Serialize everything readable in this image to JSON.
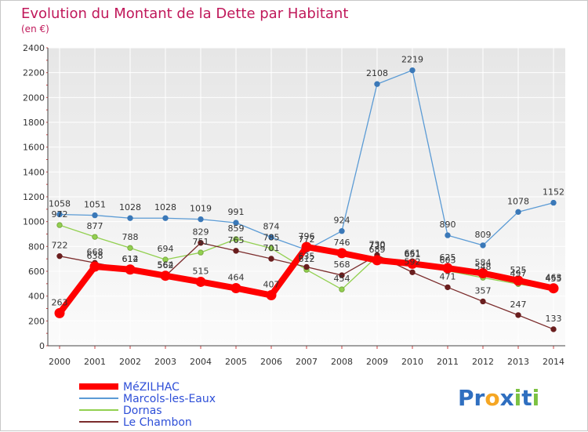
{
  "chart_data": {
    "type": "line",
    "title": "Evolution du Montant de la Dette par Habitant",
    "subtitle": "(en €)",
    "xlabel": "",
    "ylabel": "",
    "x": [
      "2000",
      "2001",
      "2002",
      "2003",
      "2004",
      "2005",
      "2006",
      "2007",
      "2008",
      "2009",
      "2010",
      "2011",
      "2012",
      "2013",
      "2014"
    ],
    "ylim": [
      0,
      2400
    ],
    "yticks": [
      0,
      200,
      400,
      600,
      800,
      1000,
      1200,
      1400,
      1600,
      1800,
      2000,
      2200,
      2400
    ],
    "grid": true,
    "legend_position": "bottom-left",
    "series": [
      {
        "name": "MéZILHAC",
        "color": "#ff0000",
        "values": [
          263,
          638,
          614,
          564,
          515,
          464,
          407,
          796,
          746,
          689,
          661,
          625,
          584,
          525,
          463
        ]
      },
      {
        "name": "Marcols-les-Eaux",
        "color": "#5b9bd5",
        "values": [
          1058,
          1051,
          1028,
          1028,
          1019,
          991,
          874,
          772,
          924,
          2108,
          2219,
          890,
          809,
          1078,
          1152
        ]
      },
      {
        "name": "Dornas",
        "color": "#92d050",
        "values": [
          972,
          877,
          788,
          694,
          751,
          859,
          785,
          612,
          454,
          720,
          651,
          603,
          548,
          497,
          455
        ]
      },
      {
        "name": "Le Chambon",
        "color": "#7b2c2c",
        "values": [
          722,
          668,
          612,
          562,
          829,
          765,
          701,
          635,
          568,
          730,
          592,
          471,
          357,
          247,
          133
        ]
      }
    ]
  },
  "logo": {
    "letters": [
      {
        "ch": "P",
        "color": "#2f6fc0"
      },
      {
        "ch": "r",
        "color": "#2f6fc0"
      },
      {
        "ch": "o",
        "color": "#f5a623"
      },
      {
        "ch": "x",
        "color": "#2f6fc0"
      },
      {
        "ch": "i",
        "color": "#7cc242"
      },
      {
        "ch": "t",
        "color": "#2f6fc0"
      },
      {
        "ch": "i",
        "color": "#7cc242"
      }
    ]
  }
}
